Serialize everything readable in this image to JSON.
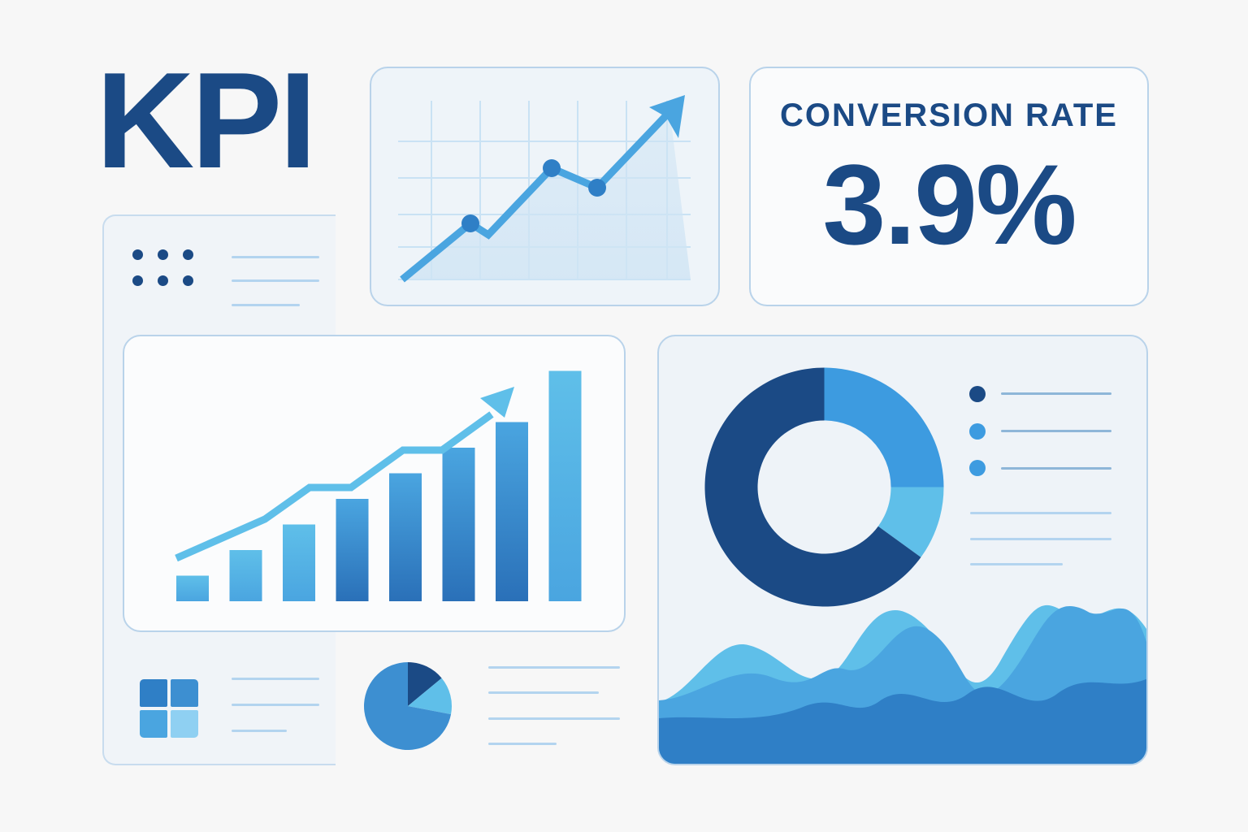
{
  "header": {
    "title": "KPI"
  },
  "conversion": {
    "label": "CONVERSION RATE",
    "value": "3.9%"
  },
  "colors": {
    "navy": "#1b4a85",
    "mid_blue": "#3d8fd1",
    "light_blue": "#5fbfe9",
    "panel_border": "#b9d3ea"
  },
  "sidebar": {
    "top_icon": "dot-grid-icon",
    "bottom_icon": "grid-tiles-icon"
  },
  "line_chart": {
    "icon": "trend-up-arrow-icon",
    "points": [
      1,
      2.5,
      2.2,
      4.6,
      4.0,
      6.5
    ]
  },
  "bar_chart": {
    "bars": [
      1,
      2,
      3,
      4,
      5,
      6,
      7,
      9
    ],
    "trend_icon": "trend-up-arrow-icon"
  },
  "donut": {
    "segments": [
      {
        "value": 0.65,
        "color": "#1b4a85"
      },
      {
        "value": 0.25,
        "color": "#3d9be0"
      },
      {
        "value": 0.1,
        "color": "#5fbfe9"
      }
    ],
    "legend_colors": [
      "#1b4a85",
      "#3d9be0",
      "#3d9be0"
    ]
  },
  "small_pie": {
    "segments": [
      {
        "value": 0.14,
        "color": "#1b4a85"
      },
      {
        "value": 0.14,
        "color": "#5fbfe9"
      },
      {
        "value": 0.72,
        "color": "#3d8fd1"
      }
    ]
  }
}
